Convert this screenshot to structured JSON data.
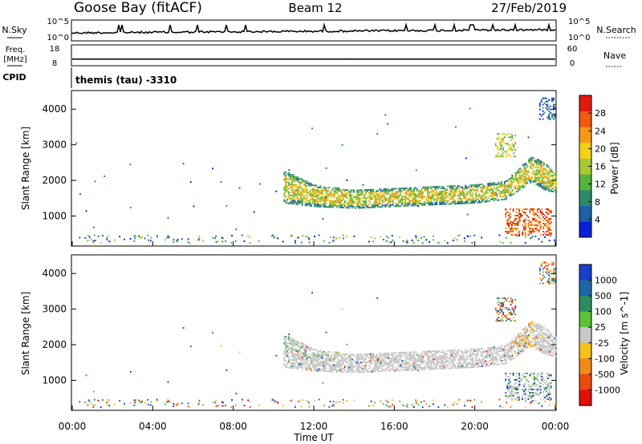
{
  "header": {
    "station": "Goose Bay (fitACF)",
    "beam": "Beam 12",
    "date": "27/Feb/2019"
  },
  "top_panels": {
    "nsky_label": "N.Sky",
    "nsky_ticks": [
      "10^5",
      "10^0"
    ],
    "nsearch_label": "N.Search",
    "nsearch_ticks": [
      "10^5",
      "10^0"
    ],
    "freq_label": "Freq.",
    "freq_unit": "[MHz]",
    "freq_ticks": [
      "18",
      "8"
    ],
    "nave_label": "Nave",
    "nave_ticks": [
      "60",
      "0"
    ],
    "cpid_label": "CPID",
    "cpid_text": "themis (tau) -3310",
    "freq_level_mhz": 11,
    "nave_level": 19
  },
  "x_axis": {
    "label": "Time UT",
    "ticks": [
      "00:00",
      "04:00",
      "08:00",
      "12:00",
      "16:00",
      "20:00",
      "00:00"
    ],
    "range_hours": [
      0,
      24
    ]
  },
  "chart_data": [
    {
      "type": "heatmap",
      "panel": "power",
      "ylabel": "Slant Range [km]",
      "yticks": [
        1000,
        2000,
        3000,
        4000
      ],
      "ylim": [
        180,
        4500
      ],
      "colorbar_label": "Power [dB]",
      "colorbar_ticks": [
        "4",
        "8",
        "12",
        "16",
        "20",
        "24",
        "28"
      ],
      "colorbar_range": [
        0,
        32
      ],
      "colors": [
        "#0a1fd9",
        "#1e5fa8",
        "#2f8a6a",
        "#55b43c",
        "#a9c934",
        "#f3d21a",
        "#f59a18",
        "#ee5a10",
        "#e01a0a"
      ],
      "main_band": [
        {
          "t": 10.5,
          "r0": 1350,
          "r1": 2250
        },
        {
          "t": 12,
          "r0": 1250,
          "r1": 1850
        },
        {
          "t": 14,
          "r0": 1200,
          "r1": 1700
        },
        {
          "t": 16,
          "r0": 1250,
          "r1": 1750
        },
        {
          "t": 18,
          "r0": 1300,
          "r1": 1800
        },
        {
          "t": 20,
          "r0": 1350,
          "r1": 1850
        },
        {
          "t": 21.5,
          "r0": 1450,
          "r1": 1950
        },
        {
          "t": 22.8,
          "r0": 1950,
          "r1": 2650
        },
        {
          "t": 23.5,
          "r0": 1700,
          "r1": 2450
        },
        {
          "t": 24,
          "r0": 1650,
          "r1": 2200
        }
      ],
      "patches": [
        {
          "t0": 21.0,
          "t1": 22.0,
          "r0": 2650,
          "r1": 3300,
          "level": "mid"
        },
        {
          "t0": 21.5,
          "t1": 23.8,
          "r0": 450,
          "r1": 1200,
          "level": "high"
        },
        {
          "t0": 23.2,
          "t1": 24.0,
          "r0": 3700,
          "r1": 4300,
          "level": "low"
        }
      ]
    },
    {
      "type": "heatmap",
      "panel": "velocity",
      "ylabel": "Slant Range [km]",
      "yticks": [
        1000,
        2000,
        3000,
        4000
      ],
      "ylim": [
        180,
        4500
      ],
      "colorbar_label": "Velocity [m s^-1]",
      "colorbar_ticks": [
        "1000",
        "500",
        "100",
        "25",
        "-25",
        "-100",
        "-500",
        "-1000"
      ],
      "colors": [
        "#1a3fc8",
        "#1f68a8",
        "#2c8c60",
        "#5cc23a",
        "#c8c8c8",
        "#f5c21a",
        "#f08a18",
        "#ea4a10",
        "#e0100a"
      ],
      "dominant_color": "#c8c8c8"
    }
  ]
}
